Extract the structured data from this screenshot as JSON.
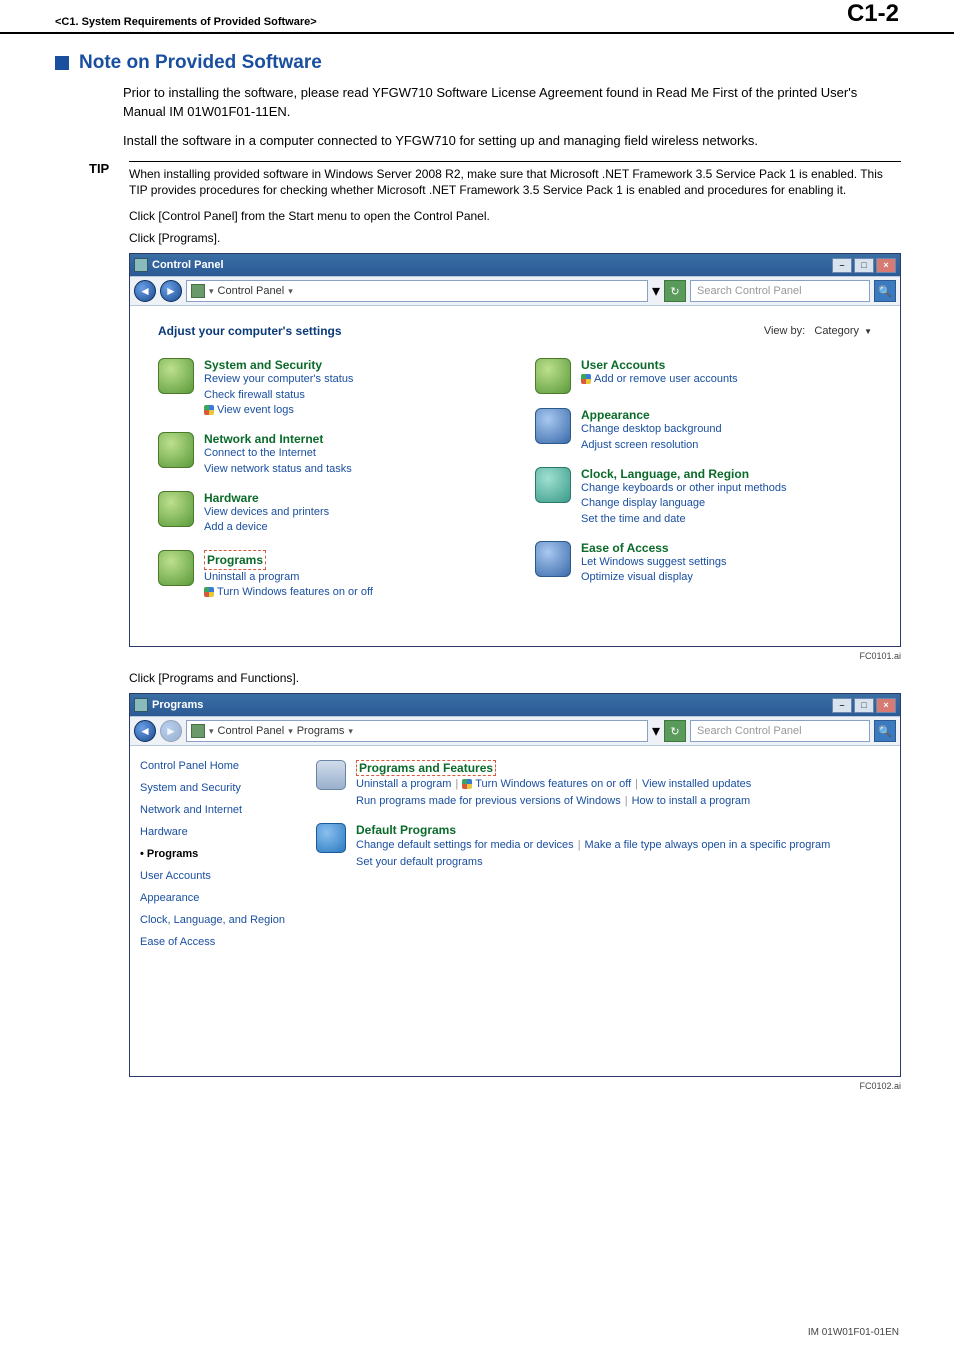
{
  "header": {
    "chapter": "<C1.  System Requirements of Provided Software>",
    "page": "C1-2"
  },
  "section_title": "Note on Provided Software",
  "para1": "Prior to installing the software, please read YFGW710 Software License Agreement found in Read Me First of the printed User's Manual IM 01W01F01-11EN.",
  "para2": "Install the software in a computer connected to YFGW710 for setting up and managing field wireless networks.",
  "tip_label": "TIP",
  "tip_para": "When installing provided software in Windows Server 2008 R2, make sure that Microsoft .NET Framework 3.5 Service Pack 1 is enabled. This TIP provides procedures for checking whether Microsoft .NET Framework 3.5 Service Pack 1 is enabled and procedures for enabling it.",
  "tip_step1": "Click [Control Panel] from the Start menu to open the Control Panel.",
  "tip_step2": "Click [Programs].",
  "tip_step3": "Click [Programs and Functions].",
  "win1": {
    "title": "Control Panel",
    "crumb": "Control Panel",
    "search_placeholder": "Search Control Panel",
    "heading": "Adjust your computer's settings",
    "viewby_label": "View by:",
    "viewby_value": "Category",
    "left": [
      {
        "t": "System and Security",
        "links": [
          "Review your computer's status",
          "Check firewall status",
          "View event logs"
        ],
        "shield": [
          false,
          false,
          true
        ]
      },
      {
        "t": "Network and Internet",
        "links": [
          "Connect to the Internet",
          "View network status and tasks"
        ]
      },
      {
        "t": "Hardware",
        "links": [
          "View devices and printers",
          "Add a device"
        ]
      },
      {
        "t": "Programs",
        "hl": true,
        "links": [
          "Uninstall a program",
          "Turn Windows features on or off"
        ],
        "shield": [
          false,
          true
        ]
      }
    ],
    "right": [
      {
        "t": "User Accounts",
        "links": [
          "Add or remove user accounts"
        ],
        "shield": [
          true
        ]
      },
      {
        "t": "Appearance",
        "links": [
          "Change desktop background",
          "Adjust screen resolution"
        ]
      },
      {
        "t": "Clock, Language, and Region",
        "links": [
          "Change keyboards or other input methods",
          "Change display language",
          "Set the time and date"
        ]
      },
      {
        "t": "Ease of Access",
        "links": [
          "Let Windows suggest settings",
          "Optimize visual display"
        ]
      }
    ],
    "fc": "FC0101.ai"
  },
  "win2": {
    "title": "Programs",
    "crumb1": "Control Panel",
    "crumb2": "Programs",
    "search_placeholder": "Search Control Panel",
    "side": [
      "Control Panel Home",
      "System and Security",
      "Network and Internet",
      "Hardware",
      "Programs",
      "User Accounts",
      "Appearance",
      "Clock, Language, and Region",
      "Ease of Access"
    ],
    "side_active_idx": 4,
    "main": [
      {
        "t": "Programs and Features",
        "hl": true,
        "row1": [
          "Uninstall a program",
          "Turn Windows features on or off",
          "View installed updates"
        ],
        "row1shield": [
          false,
          true,
          false
        ],
        "row2": [
          "Run programs made for previous versions of Windows",
          "How to install a program"
        ]
      },
      {
        "t": "Default Programs",
        "row1": [
          "Change default settings for media or devices",
          "Make a file type always open in a specific program"
        ],
        "row2": [
          "Set your default programs"
        ]
      }
    ],
    "fc": "FC0102.ai"
  },
  "footer_im": "IM 01W01F01-01EN"
}
